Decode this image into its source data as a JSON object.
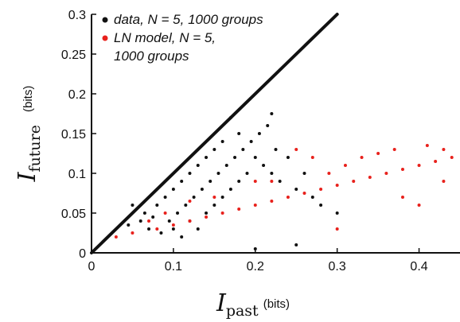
{
  "chart_data": {
    "type": "scatter",
    "xlabel": {
      "main": "I",
      "sub": "past",
      "unit": "(bits)"
    },
    "ylabel": {
      "main": "I",
      "sub": "future",
      "unit": "(bits)"
    },
    "xlim": [
      0,
      0.45
    ],
    "ylim": [
      0,
      0.3
    ],
    "xticks": [
      0,
      0.1,
      0.2,
      0.3,
      0.4
    ],
    "xtick_labels": [
      "0",
      "0.1",
      "0.2",
      "0.3",
      "0.4"
    ],
    "yticks": [
      0,
      0.05,
      0.1,
      0.15,
      0.2,
      0.25,
      0.3
    ],
    "ytick_labels": [
      "0",
      "0.05",
      "0.1",
      "0.15",
      "0.2",
      "0.25",
      "0.3"
    ],
    "grid": false,
    "legend_position": "top-left",
    "legend": [
      {
        "label": "data, N = 5, 1000 groups",
        "lines": [
          "data, N = 5, 1000 groups"
        ],
        "color": "#111111"
      },
      {
        "label": "LN model, N = 5, 1000 groups",
        "lines": [
          "LN model, N = 5,",
          "1000 groups"
        ],
        "color": "#e8211c"
      }
    ],
    "reference_line": {
      "from": [
        0,
        0
      ],
      "to": [
        0.3,
        0.3
      ],
      "color": "#111111"
    },
    "series": [
      {
        "color": "#111111",
        "points": [
          [
            0.045,
            0.035
          ],
          [
            0.05,
            0.06
          ],
          [
            0.06,
            0.04
          ],
          [
            0.065,
            0.05
          ],
          [
            0.07,
            0.03
          ],
          [
            0.075,
            0.045
          ],
          [
            0.08,
            0.06
          ],
          [
            0.085,
            0.025
          ],
          [
            0.09,
            0.07
          ],
          [
            0.095,
            0.04
          ],
          [
            0.1,
            0.08
          ],
          [
            0.1,
            0.03
          ],
          [
            0.105,
            0.05
          ],
          [
            0.11,
            0.09
          ],
          [
            0.11,
            0.02
          ],
          [
            0.115,
            0.06
          ],
          [
            0.12,
            0.1
          ],
          [
            0.12,
            0.04
          ],
          [
            0.125,
            0.07
          ],
          [
            0.13,
            0.11
          ],
          [
            0.13,
            0.03
          ],
          [
            0.135,
            0.08
          ],
          [
            0.14,
            0.12
          ],
          [
            0.14,
            0.05
          ],
          [
            0.145,
            0.09
          ],
          [
            0.15,
            0.13
          ],
          [
            0.15,
            0.06
          ],
          [
            0.155,
            0.1
          ],
          [
            0.16,
            0.14
          ],
          [
            0.16,
            0.07
          ],
          [
            0.165,
            0.11
          ],
          [
            0.17,
            0.17
          ],
          [
            0.17,
            0.08
          ],
          [
            0.175,
            0.12
          ],
          [
            0.18,
            0.15
          ],
          [
            0.18,
            0.09
          ],
          [
            0.185,
            0.13
          ],
          [
            0.19,
            0.1
          ],
          [
            0.195,
            0.14
          ],
          [
            0.2,
            0.12
          ],
          [
            0.205,
            0.15
          ],
          [
            0.21,
            0.11
          ],
          [
            0.215,
            0.16
          ],
          [
            0.22,
            0.175
          ],
          [
            0.22,
            0.1
          ],
          [
            0.225,
            0.13
          ],
          [
            0.23,
            0.09
          ],
          [
            0.24,
            0.12
          ],
          [
            0.25,
            0.08
          ],
          [
            0.26,
            0.1
          ],
          [
            0.27,
            0.07
          ],
          [
            0.28,
            0.06
          ],
          [
            0.3,
            0.05
          ],
          [
            0.25,
            0.01
          ],
          [
            0.2,
            0.005
          ]
        ]
      },
      {
        "color": "#e8211c",
        "points": [
          [
            0.03,
            0.02
          ],
          [
            0.05,
            0.025
          ],
          [
            0.08,
            0.03
          ],
          [
            0.1,
            0.035
          ],
          [
            0.12,
            0.04
          ],
          [
            0.14,
            0.045
          ],
          [
            0.16,
            0.05
          ],
          [
            0.18,
            0.055
          ],
          [
            0.2,
            0.06
          ],
          [
            0.22,
            0.065
          ],
          [
            0.24,
            0.07
          ],
          [
            0.26,
            0.075
          ],
          [
            0.28,
            0.08
          ],
          [
            0.3,
            0.085
          ],
          [
            0.32,
            0.09
          ],
          [
            0.34,
            0.095
          ],
          [
            0.36,
            0.1
          ],
          [
            0.38,
            0.105
          ],
          [
            0.4,
            0.11
          ],
          [
            0.42,
            0.115
          ],
          [
            0.44,
            0.12
          ],
          [
            0.41,
            0.135
          ],
          [
            0.43,
            0.13
          ],
          [
            0.37,
            0.13
          ],
          [
            0.35,
            0.125
          ],
          [
            0.33,
            0.12
          ],
          [
            0.31,
            0.11
          ],
          [
            0.29,
            0.1
          ],
          [
            0.27,
            0.12
          ],
          [
            0.25,
            0.13
          ],
          [
            0.3,
            0.03
          ],
          [
            0.38,
            0.07
          ],
          [
            0.4,
            0.06
          ],
          [
            0.43,
            0.09
          ],
          [
            0.2,
            0.09
          ],
          [
            0.22,
            0.09
          ],
          [
            0.15,
            0.07
          ],
          [
            0.12,
            0.065
          ],
          [
            0.09,
            0.05
          ],
          [
            0.07,
            0.04
          ]
        ]
      }
    ]
  }
}
